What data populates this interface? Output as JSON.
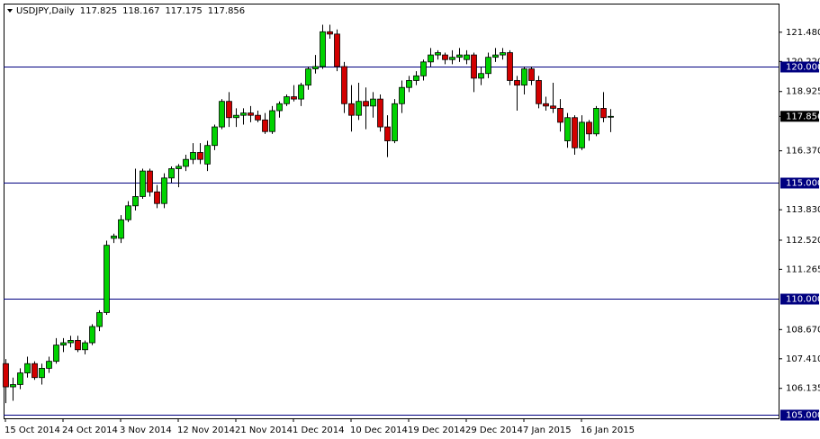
{
  "chart_data": {
    "type": "candlestick",
    "title": "USDJPY,Daily",
    "up_color": "#00d200",
    "down_color": "#d20000",
    "level_color": "#000080",
    "ylim": [
      104.845,
      122.713
    ],
    "yticks": [
      {
        "value": 121.48,
        "label": "121.480"
      },
      {
        "value": 120.22,
        "label": "120.220"
      },
      {
        "value": 118.925,
        "label": "118.925"
      },
      {
        "value": 116.37,
        "label": "116.370"
      },
      {
        "value": 113.83,
        "label": "113.830"
      },
      {
        "value": 112.52,
        "label": "112.520"
      },
      {
        "value": 111.265,
        "label": "111.265"
      },
      {
        "value": 108.67,
        "label": "108.670"
      },
      {
        "value": 107.41,
        "label": "107.410"
      },
      {
        "value": 106.135,
        "label": "106.135"
      }
    ],
    "levels": [
      {
        "value": 120,
        "label": "120.000"
      },
      {
        "value": 115,
        "label": "115.000"
      },
      {
        "value": 110,
        "label": "110.000"
      },
      {
        "value": 105,
        "label": "105.000"
      }
    ],
    "categories": [
      "15 Oct 2014",
      null,
      null,
      null,
      null,
      null,
      null,
      null,
      "24 Oct 2014",
      null,
      null,
      null,
      null,
      null,
      null,
      null,
      "3 Nov 2014",
      null,
      null,
      null,
      null,
      null,
      null,
      null,
      "12 Nov 2014",
      null,
      null,
      null,
      null,
      null,
      null,
      null,
      "21 Nov 2014",
      null,
      null,
      null,
      null,
      null,
      null,
      null,
      "1 Dec 2014",
      null,
      null,
      null,
      null,
      null,
      null,
      null,
      "10 Dec 2014",
      null,
      null,
      null,
      null,
      null,
      null,
      null,
      "19 Dec 2014",
      null,
      null,
      null,
      null,
      null,
      null,
      null,
      "29 Dec 2014",
      null,
      null,
      null,
      null,
      null,
      null,
      null,
      "7 Jan 2015",
      null,
      null,
      null,
      null,
      null,
      null,
      null,
      "16 Jan 2015",
      null,
      null,
      null,
      null
    ],
    "open": [
      107.2,
      106.2,
      106.3,
      106.8,
      107.2,
      106.6,
      107.0,
      107.3,
      108.0,
      108.1,
      108.2,
      107.8,
      108.1,
      108.8,
      109.4,
      112.6,
      112.6,
      113.4,
      114.0,
      114.4,
      115.5,
      114.6,
      114.1,
      115.2,
      115.6,
      115.7,
      116.0,
      116.3,
      115.8,
      116.6,
      117.4,
      118.5,
      117.8,
      117.9,
      118.0,
      117.9,
      117.7,
      117.2,
      118.1,
      118.4,
      118.7,
      118.6,
      119.2,
      119.9,
      120.0,
      121.5,
      121.4,
      120.0,
      118.4,
      117.9,
      118.5,
      118.3,
      118.6,
      117.4,
      116.8,
      118.4,
      119.1,
      119.4,
      119.6,
      120.2,
      120.5,
      120.5,
      120.3,
      120.4,
      120.3,
      120.5,
      119.5,
      119.7,
      120.4,
      120.5,
      120.6,
      119.4,
      119.2,
      119.9,
      119.4,
      118.4,
      118.3,
      118.2,
      116.8,
      117.8,
      116.5,
      117.6,
      117.1,
      118.2,
      117.825
    ],
    "high": [
      107.4,
      106.6,
      107.0,
      107.5,
      107.3,
      107.2,
      107.5,
      108.3,
      108.3,
      108.4,
      108.4,
      108.2,
      108.9,
      109.5,
      112.5,
      112.8,
      113.6,
      114.2,
      115.6,
      115.6,
      115.6,
      114.9,
      115.4,
      115.7,
      115.8,
      116.2,
      116.7,
      116.7,
      116.8,
      117.5,
      118.6,
      118.9,
      118.2,
      118.2,
      118.3,
      118.1,
      118.0,
      118.3,
      118.5,
      118.8,
      119.2,
      119.3,
      120.0,
      120.5,
      121.8,
      121.8,
      121.6,
      120.2,
      119.2,
      119.3,
      119.1,
      118.9,
      118.8,
      117.9,
      118.6,
      119.4,
      119.6,
      119.8,
      120.3,
      120.8,
      120.7,
      120.6,
      120.7,
      120.8,
      120.7,
      120.6,
      120.0,
      120.6,
      120.8,
      120.8,
      120.7,
      119.6,
      120.0,
      120.0,
      119.6,
      118.7,
      119.3,
      118.6,
      118.0,
      117.9,
      117.9,
      117.7,
      118.3,
      118.9,
      118.167
    ],
    "low": [
      105.5,
      105.6,
      106.1,
      106.6,
      106.5,
      106.3,
      106.8,
      107.2,
      107.7,
      107.9,
      107.7,
      107.6,
      108.0,
      108.6,
      109.3,
      112.4,
      112.4,
      113.3,
      113.8,
      114.3,
      114.4,
      113.9,
      113.9,
      115.0,
      114.8,
      115.5,
      115.8,
      115.8,
      115.5,
      116.4,
      117.3,
      117.4,
      117.4,
      117.5,
      117.6,
      117.6,
      117.1,
      117.1,
      117.8,
      118.3,
      118.5,
      118.3,
      119.0,
      119.7,
      119.9,
      121.2,
      119.8,
      118.0,
      117.2,
      117.7,
      117.3,
      117.8,
      117.2,
      116.1,
      116.7,
      118.0,
      118.9,
      119.2,
      119.4,
      120.0,
      120.3,
      120.1,
      120.1,
      120.2,
      120.1,
      118.9,
      119.2,
      119.5,
      120.2,
      120.3,
      119.2,
      118.1,
      118.8,
      119.2,
      118.2,
      118.1,
      118.0,
      117.2,
      116.5,
      116.2,
      116.4,
      116.8,
      117.0,
      117.6,
      117.175
    ],
    "close": [
      106.2,
      106.3,
      106.8,
      107.2,
      106.6,
      107.0,
      107.3,
      108.0,
      108.1,
      108.2,
      107.8,
      108.1,
      108.8,
      109.4,
      112.3,
      112.7,
      113.4,
      114.0,
      114.4,
      115.5,
      114.6,
      114.1,
      115.2,
      115.6,
      115.7,
      116.0,
      116.3,
      116.0,
      116.6,
      117.4,
      118.5,
      117.8,
      117.9,
      118.0,
      117.9,
      117.7,
      117.2,
      118.1,
      118.4,
      118.7,
      118.6,
      119.2,
      119.9,
      120.0,
      121.5,
      121.4,
      120.0,
      118.4,
      117.9,
      118.5,
      118.3,
      118.6,
      117.4,
      116.8,
      118.4,
      119.1,
      119.4,
      119.6,
      120.2,
      120.5,
      120.6,
      120.3,
      120.4,
      120.5,
      120.5,
      119.5,
      119.7,
      120.4,
      120.5,
      120.6,
      119.4,
      119.2,
      119.9,
      119.4,
      118.4,
      118.3,
      118.2,
      117.6,
      117.8,
      116.5,
      117.6,
      117.1,
      118.2,
      117.8,
      117.856
    ]
  }
}
